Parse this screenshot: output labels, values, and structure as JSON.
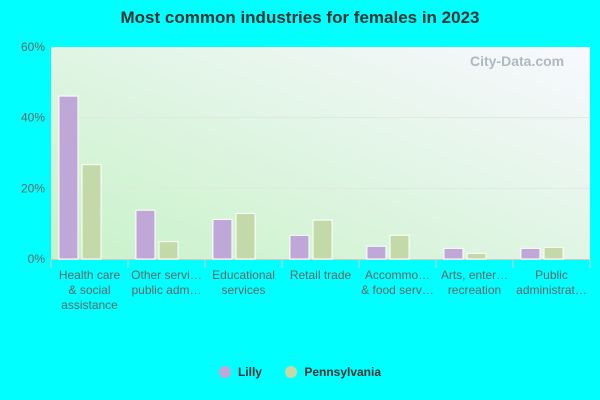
{
  "chart_data": {
    "type": "bar",
    "title": "Most common industries for females in 2023",
    "categories": [
      [
        "Health care",
        "& social",
        "assistance"
      ],
      [
        "Other servi…",
        "public adm…"
      ],
      [
        "Educational",
        "services"
      ],
      [
        "Retail trade"
      ],
      [
        "Accommo…",
        "& food serv…"
      ],
      [
        "Arts, enter…",
        "recreation"
      ],
      [
        "Public",
        "administrat…"
      ]
    ],
    "series": [
      {
        "name": "Lilly",
        "color": "#bfa8d8",
        "values": [
          46.1,
          13.8,
          11.2,
          6.7,
          3.6,
          3.0,
          3.0
        ]
      },
      {
        "name": "Pennsylvania",
        "color": "#c4d9a8",
        "values": [
          26.7,
          4.9,
          12.9,
          11.0,
          6.7,
          1.6,
          3.3
        ]
      }
    ],
    "yticks": [
      "0%",
      "20%",
      "40%",
      "60%"
    ],
    "ylim": [
      0,
      60
    ],
    "grid": true,
    "legend": "bottom"
  },
  "watermark": "City-Data.com"
}
